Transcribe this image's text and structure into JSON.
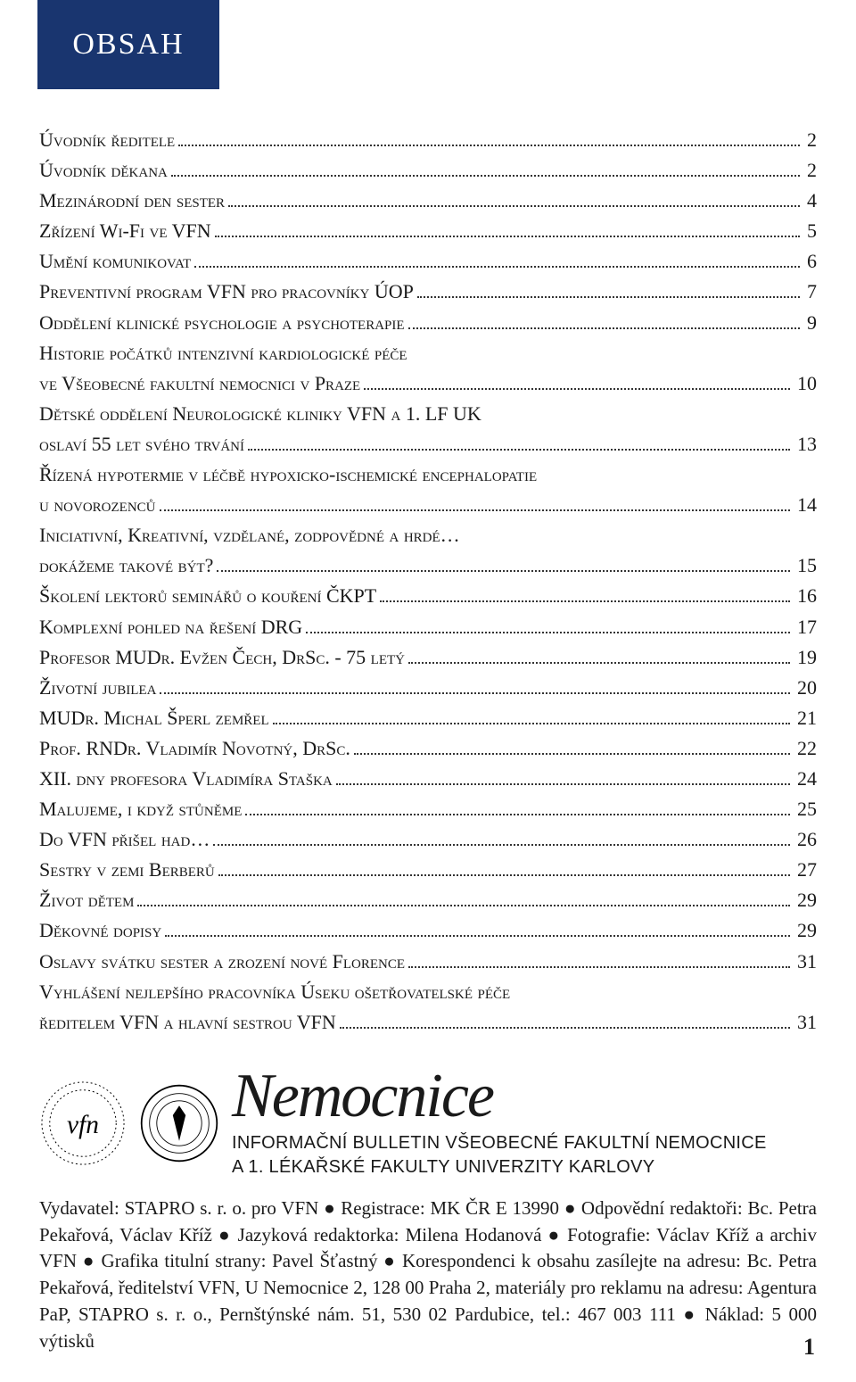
{
  "header": {
    "title": "OBSAH"
  },
  "toc": {
    "fontsize": 22,
    "entries": [
      {
        "title": "Úvodník ředitele",
        "page": "2"
      },
      {
        "title": "Úvodník děkana",
        "page": "2"
      },
      {
        "title": "Mezinárodní den sester",
        "page": "4"
      },
      {
        "title": "Zřízení Wi-Fi ve VFN",
        "page": "5"
      },
      {
        "title": "Umění komunikovat",
        "page": "6"
      },
      {
        "title": "Preventivní program VFN pro pracovníky ÚOP",
        "page": "7"
      },
      {
        "title": "Oddělení klinické psychologie a psychoterapie",
        "page": "9"
      },
      {
        "title": "Historie počátků intenzivní kardiologické péče",
        "cont": "ve Všeobecné fakultní nemocnici v Praze",
        "page": "10"
      },
      {
        "title": "Dětské oddělení Neurologické kliniky VFN a 1. LF UK",
        "cont": "oslaví 55 let svého trvání",
        "page": "13"
      },
      {
        "title": "Řízená hypotermie v léčbě hypoxicko-ischemické encephalopatie",
        "cont": "u novorozenců",
        "page": "14"
      },
      {
        "title": "Iniciativní, Kreativní, vzdělané, zodpovědné a hrdé…",
        "cont": "dokážeme takové být?",
        "page": "15"
      },
      {
        "title": "Školení lektorů seminářů o kouření ČKPT",
        "page": "16"
      },
      {
        "title": "Komplexní pohled na řešení DRG",
        "page": "17"
      },
      {
        "title": "Profesor MUDr. Evžen Čech, DrSc. - 75 letý",
        "page": "19"
      },
      {
        "title": "Životní jubilea",
        "page": "20"
      },
      {
        "title": "MUDr. Michal Šperl zemřel",
        "page": "21"
      },
      {
        "title": "Prof. RNDr. Vladimír Novotný, DrSc.",
        "page": "22"
      },
      {
        "title": "XII. dny profesora Vladimíra Staška",
        "page": "24"
      },
      {
        "title": "Malujeme, i když stůněme",
        "page": "25"
      },
      {
        "title": "Do VFN přišel had…",
        "page": "26"
      },
      {
        "title": "Sestry v zemi Berberů",
        "page": "27"
      },
      {
        "title": "Život dětem",
        "page": "29"
      },
      {
        "title": "Děkovné dopisy",
        "page": "29"
      },
      {
        "title": "Oslavy svátku sester a zrození nové Florence",
        "page": "31"
      },
      {
        "title": "Vyhlášení nejlepšího pracovníka Úseku ošetřovatelské péče",
        "cont": "ředitelem VFN a hlavní sestrou VFN",
        "page": "31"
      }
    ]
  },
  "masthead": {
    "logo_vfn_label": "vfn",
    "logo_vfn_ring": "VŠEOBECNÁ FAKULTNÍ NEMOCNICE V PRAZE",
    "script_title": "Nemocnice",
    "bulletin_line1": "INFORMAČNÍ BULLETIN VŠEOBECNÉ FAKULTNÍ NEMOCNICE",
    "bulletin_line2": "A 1. LÉKAŘSKÉ FAKULTY UNIVERZITY KARLOVY"
  },
  "colophon": {
    "text": "Vydavatel: STAPRO s. r. o. pro VFN ● Registrace: MK ČR E 13990 ● Odpovědní redaktoři: Bc. Petra Pekařová, Václav Kříž ● Jazyková redaktorka: Milena Hodanová ● Fotografie: Václav Kříž a archiv VFN ● Grafika titulní strany: Pavel Šťastný ● Korespondenci k obsahu zasílejte na adresu: Bc. Petra Pekařová, ředitelství VFN, U Nemocnice 2, 128 00  Praha 2, materiály pro reklamu na adresu: Agentura PaP, STAPRO s. r. o., Pernštýnské nám. 51, 530 02  Pardubice, tel.: 467 003 111 ● Náklad: 5 000 výtisků"
  },
  "page_number": "1",
  "colors": {
    "header_bg": "#19356f",
    "header_text": "#ffffff",
    "body_text": "#1a1a1a",
    "page_bg": "#ffffff"
  }
}
